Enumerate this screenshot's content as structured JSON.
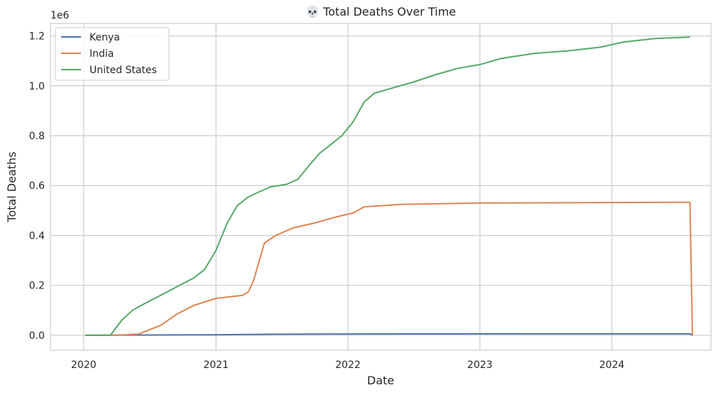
{
  "chart_data": {
    "type": "line",
    "title": "💀 Total Deaths Over Time",
    "xlabel": "Date",
    "ylabel": "Total Deaths",
    "y_offset_label": "1e6",
    "x_ticks": [
      "2020",
      "2021",
      "2022",
      "2023",
      "2024"
    ],
    "y_ticks": [
      "0.0",
      "0.2",
      "0.4",
      "0.6",
      "0.8",
      "1.0",
      "1.2"
    ],
    "y_tick_values": [
      0,
      0.2,
      0.4,
      0.6,
      0.8,
      1.0,
      1.2
    ],
    "xlim": [
      "2019-10-01",
      "2024-10-01"
    ],
    "ylim": [
      -0.06,
      1.25
    ],
    "grid": true,
    "legend_position": "top-left",
    "series": [
      {
        "name": "Kenya",
        "color": "#4c72b0",
        "x": [
          "2020-01-05",
          "2020-06-01",
          "2021-01-01",
          "2021-06-01",
          "2021-10-01",
          "2022-06-01",
          "2023-06-01",
          "2024-08-04",
          "2024-08-11"
        ],
        "y": [
          0,
          0.001,
          0.002,
          0.004,
          0.005,
          0.0056,
          0.0057,
          0.0057,
          0
        ]
      },
      {
        "name": "India",
        "color": "#dd8452",
        "x": [
          "2020-01-05",
          "2020-04-01",
          "2020-06-01",
          "2020-08-01",
          "2020-09-15",
          "2020-11-01",
          "2021-01-01",
          "2021-03-15",
          "2021-04-01",
          "2021-04-15",
          "2021-05-01",
          "2021-05-15",
          "2021-06-15",
          "2021-08-01",
          "2021-10-01",
          "2021-12-01",
          "2022-01-15",
          "2022-02-15",
          "2022-06-01",
          "2023-01-01",
          "2024-06-01",
          "2024-08-04",
          "2024-08-11"
        ],
        "y": [
          0,
          0,
          0.005,
          0.04,
          0.085,
          0.12,
          0.148,
          0.16,
          0.175,
          0.22,
          0.3,
          0.37,
          0.4,
          0.43,
          0.45,
          0.475,
          0.49,
          0.515,
          0.525,
          0.53,
          0.533,
          0.533,
          0
        ]
      },
      {
        "name": "United States",
        "color": "#55a868",
        "x": [
          "2020-01-05",
          "2020-03-15",
          "2020-04-15",
          "2020-05-15",
          "2020-06-15",
          "2020-08-01",
          "2020-09-15",
          "2020-11-01",
          "2020-12-01",
          "2021-01-01",
          "2021-02-01",
          "2021-03-01",
          "2021-04-01",
          "2021-05-01",
          "2021-06-01",
          "2021-07-15",
          "2021-08-15",
          "2021-09-15",
          "2021-10-15",
          "2021-11-15",
          "2021-12-15",
          "2022-01-15",
          "2022-02-15",
          "2022-03-15",
          "2022-05-01",
          "2022-07-01",
          "2022-09-01",
          "2022-11-01",
          "2023-01-01",
          "2023-03-01",
          "2023-06-01",
          "2023-09-01",
          "2023-12-01",
          "2024-02-01",
          "2024-05-01",
          "2024-08-04"
        ],
        "y": [
          0,
          0,
          0.06,
          0.1,
          0.125,
          0.16,
          0.195,
          0.23,
          0.265,
          0.34,
          0.45,
          0.52,
          0.555,
          0.575,
          0.595,
          0.605,
          0.625,
          0.68,
          0.73,
          0.765,
          0.8,
          0.855,
          0.935,
          0.97,
          0.99,
          1.015,
          1.045,
          1.07,
          1.085,
          1.11,
          1.13,
          1.14,
          1.155,
          1.175,
          1.19,
          1.195
        ]
      }
    ]
  }
}
